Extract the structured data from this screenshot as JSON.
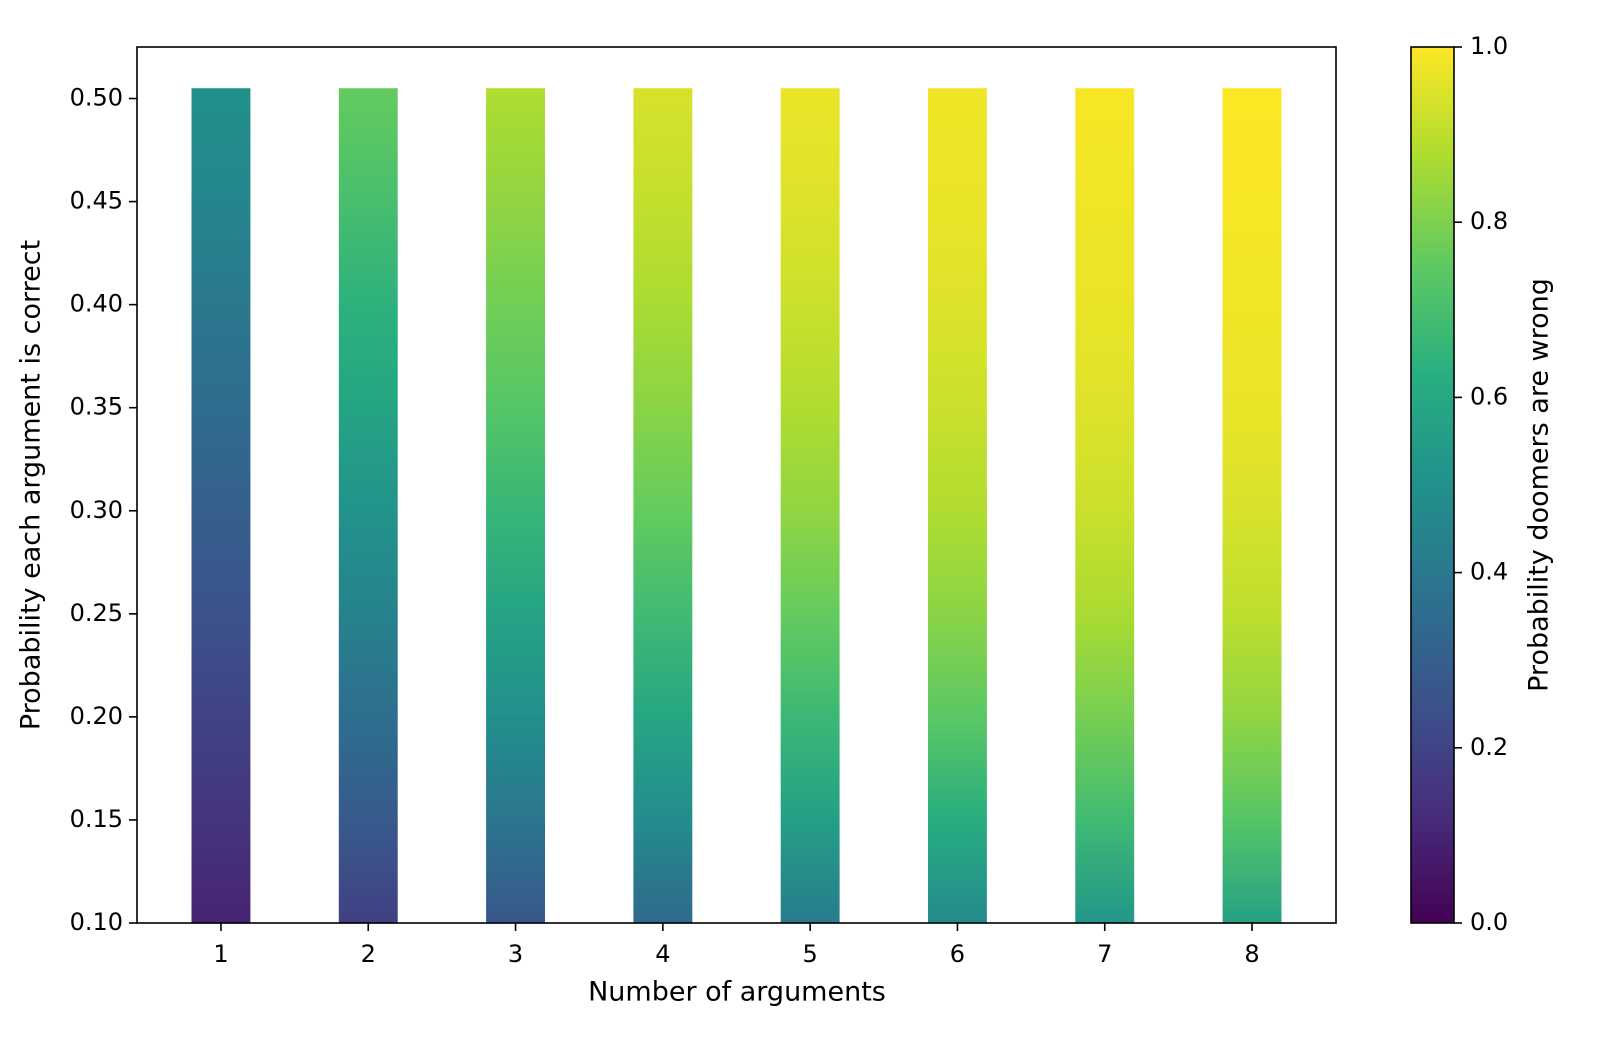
{
  "chart_data": {
    "type": "heatmap",
    "x": [
      1,
      2,
      3,
      4,
      5,
      6,
      7,
      8
    ],
    "y": [
      0.1,
      0.15,
      0.2,
      0.25,
      0.3,
      0.35,
      0.4,
      0.45,
      0.505
    ],
    "z": [
      [
        0.1,
        0.15,
        0.2,
        0.25,
        0.3,
        0.35,
        0.4,
        0.45,
        0.5
      ],
      [
        0.19,
        0.28,
        0.36,
        0.44,
        0.51,
        0.58,
        0.64,
        0.7,
        0.76
      ],
      [
        0.27,
        0.39,
        0.49,
        0.58,
        0.66,
        0.73,
        0.78,
        0.83,
        0.88
      ],
      [
        0.34,
        0.48,
        0.59,
        0.68,
        0.76,
        0.82,
        0.87,
        0.91,
        0.94
      ],
      [
        0.41,
        0.56,
        0.67,
        0.76,
        0.83,
        0.88,
        0.92,
        0.95,
        0.97
      ],
      [
        0.47,
        0.62,
        0.74,
        0.82,
        0.88,
        0.92,
        0.95,
        0.97,
        0.98
      ],
      [
        0.52,
        0.68,
        0.79,
        0.87,
        0.92,
        0.95,
        0.97,
        0.98,
        0.99
      ],
      [
        0.57,
        0.73,
        0.83,
        0.9,
        0.94,
        0.97,
        0.98,
        0.99,
        1.0
      ]
    ],
    "bar_width": 0.4,
    "colormap": [
      "#440154",
      "#472d7b",
      "#3b528b",
      "#2c728e",
      "#21918c",
      "#28ae80",
      "#5ec962",
      "#addc30",
      "#fde725"
    ],
    "xlabel": "Number of arguments",
    "ylabel": "Probability each argument is correct",
    "colorbar_label": "Probability doomers are wrong",
    "xlim": [
      0.43,
      8.57
    ],
    "ylim": [
      0.1,
      0.525
    ],
    "xticks": [
      1,
      2,
      3,
      4,
      5,
      6,
      7,
      8
    ],
    "yticks": [
      {
        "value": 0.1,
        "label": "0.10"
      },
      {
        "value": 0.15,
        "label": "0.15"
      },
      {
        "value": 0.2,
        "label": "0.20"
      },
      {
        "value": 0.25,
        "label": "0.25"
      },
      {
        "value": 0.3,
        "label": "0.30"
      },
      {
        "value": 0.35,
        "label": "0.35"
      },
      {
        "value": 0.4,
        "label": "0.40"
      },
      {
        "value": 0.45,
        "label": "0.45"
      },
      {
        "value": 0.5,
        "label": "0.50"
      }
    ],
    "clim": [
      0,
      1
    ],
    "cticks": [
      {
        "value": 0,
        "label": "0.0"
      },
      0.2,
      0.4,
      0.6,
      0.8,
      {
        "value": 1,
        "label": "1.0"
      }
    ]
  }
}
